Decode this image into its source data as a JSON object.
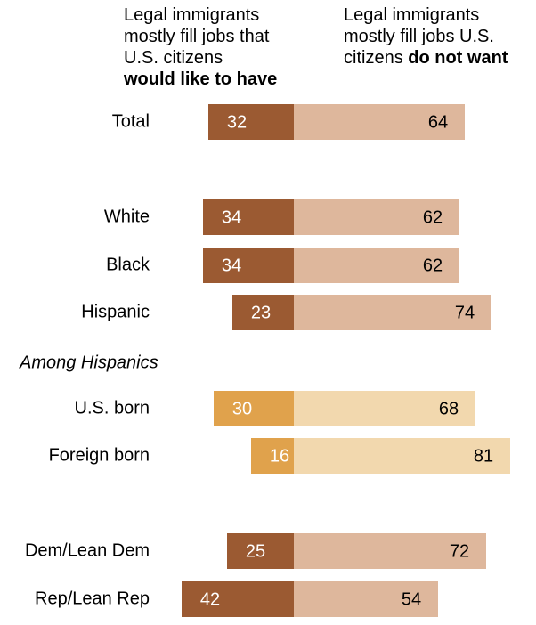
{
  "headers": {
    "left": {
      "line1": "Legal immigrants",
      "line2": "mostly fill jobs that",
      "line3": "U.S. citizens",
      "bold": "would like to have"
    },
    "right": {
      "line1": "Legal immigrants",
      "line2": "mostly fill jobs U.S.",
      "line3_prefix": "citizens ",
      "bold": "do not want"
    }
  },
  "chart_data": {
    "type": "bar",
    "orientation": "horizontal-diverging",
    "categories": [
      "Total",
      "White",
      "Black",
      "Hispanic",
      "U.S. born",
      "Foreign born",
      "Dem/Lean Dem",
      "Rep/Lean Rep"
    ],
    "section_labels": [
      "Among Hispanics"
    ],
    "series": [
      {
        "name": "Legal immigrants mostly fill jobs that U.S. citizens would like to have",
        "values": [
          32,
          34,
          34,
          23,
          30,
          16,
          25,
          42
        ]
      },
      {
        "name": "Legal immigrants mostly fill jobs U.S. citizens do not want",
        "values": [
          64,
          62,
          62,
          74,
          68,
          81,
          72,
          54
        ]
      }
    ],
    "colors": {
      "left": "#9B5A32",
      "right": "#DEB79C",
      "left_hispanic": "#E0A24C",
      "right_hispanic": "#F2D8AE",
      "label_on_dark": "#FFFFFF",
      "label_on_light": "#000000"
    }
  }
}
